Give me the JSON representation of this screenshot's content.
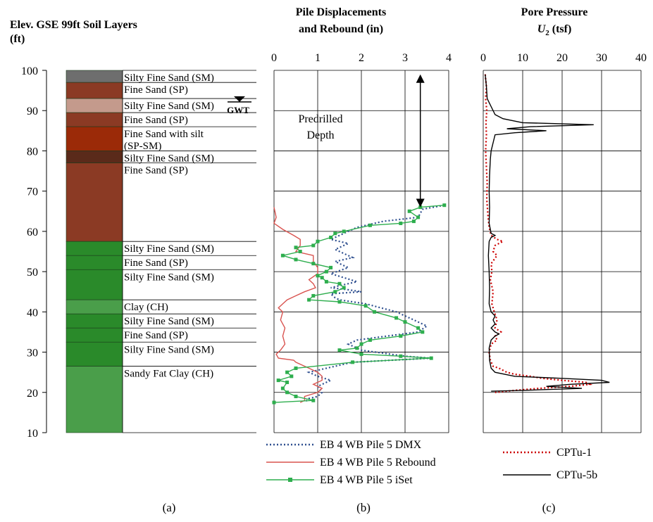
{
  "chart_data": [
    {
      "type": "soil-profile",
      "title": "Elev. GSE 99ft  Soil Layers",
      "ylabel": "(ft)",
      "ylim": [
        10,
        100
      ],
      "yticks": [
        10,
        20,
        30,
        40,
        50,
        60,
        70,
        80,
        90,
        100
      ],
      "panel_label": "(a)",
      "gwt_label": "GWT",
      "gwt_elevation": 96,
      "layers": [
        {
          "top": 100,
          "bottom": 97,
          "label": "Silty Fine Sand (SM)",
          "color": "#6e6e6e"
        },
        {
          "top": 97,
          "bottom": 93,
          "label": "Fine Sand (SP)",
          "color": "#8b3a24"
        },
        {
          "top": 93,
          "bottom": 89.5,
          "label": "Silty Fine Sand (SM)",
          "color": "#c49a8c"
        },
        {
          "top": 89.5,
          "bottom": 86,
          "label": "Fine Sand (SP)",
          "color": "#8b3a24"
        },
        {
          "top": 86,
          "bottom": 80,
          "label": "Fine Sand with silt",
          "label2": "(SP-SM)",
          "color": "#9b2a08"
        },
        {
          "top": 80,
          "bottom": 77,
          "label": "Silty Fine Sand (SM)",
          "color": "#5a2a1a"
        },
        {
          "top": 77,
          "bottom": 57.5,
          "label": "Fine Sand (SP)",
          "color": "#8b3a24"
        },
        {
          "top": 57.5,
          "bottom": 54,
          "label": "Silty Fine Sand (SM)",
          "color": "#2a8a2a"
        },
        {
          "top": 54,
          "bottom": 50.5,
          "label": "Fine Sand (SP)",
          "color": "#2a8a2a"
        },
        {
          "top": 50.5,
          "bottom": 43,
          "label": "Silty Fine Sand (SM)",
          "color": "#2a8a2a"
        },
        {
          "top": 43,
          "bottom": 39.5,
          "label": "Clay (CH)",
          "color": "#4a9e4a"
        },
        {
          "top": 39.5,
          "bottom": 36,
          "label": "Silty Fine Sand (SM)",
          "color": "#2a8a2a"
        },
        {
          "top": 36,
          "bottom": 32.5,
          "label": "Fine Sand (SP)",
          "color": "#2a8a2a"
        },
        {
          "top": 32.5,
          "bottom": 26.5,
          "label": "Silty Fine Sand (SM)",
          "color": "#2a8a2a"
        },
        {
          "top": 26.5,
          "bottom": 10,
          "label": "Sandy Fat Clay (CH)",
          "color": "#4a9e4a"
        }
      ]
    },
    {
      "type": "line",
      "title": "Pile Displacements",
      "title2": "and Rebound (in)",
      "panel_label": "(b)",
      "xlim": [
        0,
        4
      ],
      "xticks": [
        0,
        1,
        2,
        3,
        4
      ],
      "ylim": [
        10,
        100
      ],
      "annotation": "Predrilled",
      "annotation2": "Depth",
      "arrow_from": 99,
      "arrow_to": 66,
      "arrow_x": 3.35,
      "series": [
        {
          "name": "EB 4 WB Pile 5 DMX",
          "color": "#2e4f8f",
          "style": "dotted",
          "points": [
            [
              3.9,
              66.5
            ],
            [
              3.4,
              65.5
            ],
            [
              3.3,
              63.5
            ],
            [
              2.5,
              62.5
            ],
            [
              1.9,
              61
            ],
            [
              1.5,
              59
            ],
            [
              1.3,
              58
            ],
            [
              1.7,
              57
            ],
            [
              1.4,
              55.5
            ],
            [
              1.8,
              53.5
            ],
            [
              1.4,
              52.5
            ],
            [
              1.7,
              51
            ],
            [
              1.3,
              49.5
            ],
            [
              1.6,
              48.5
            ],
            [
              1.9,
              47.5
            ],
            [
              1.3,
              46
            ],
            [
              1.7,
              45.5
            ],
            [
              2.0,
              45
            ],
            [
              1.3,
              44.5
            ],
            [
              1.4,
              43.5
            ],
            [
              1.5,
              43
            ],
            [
              2.1,
              42
            ],
            [
              2.8,
              40
            ],
            [
              3.5,
              36.5
            ],
            [
              3.3,
              35
            ],
            [
              1.9,
              33
            ],
            [
              1.7,
              32
            ],
            [
              2.0,
              30.5
            ],
            [
              3.0,
              29
            ],
            [
              3.6,
              28.5
            ],
            [
              1.8,
              27.5
            ],
            [
              1.2,
              26
            ],
            [
              0.8,
              25
            ],
            [
              1.0,
              24
            ],
            [
              1.3,
              23
            ],
            [
              1.0,
              21.5
            ],
            [
              1.1,
              20
            ],
            [
              1.0,
              19
            ],
            [
              0.8,
              18.5
            ],
            [
              0.7,
              17.5
            ]
          ]
        },
        {
          "name": "EB 4 WB Pile 5 Rebound",
          "color": "#d9534f",
          "style": "solid",
          "points": [
            [
              0,
              66
            ],
            [
              0.05,
              63.5
            ],
            [
              0.0,
              62
            ],
            [
              0.2,
              60.5
            ],
            [
              0.45,
              59
            ],
            [
              0.6,
              58
            ],
            [
              0.6,
              56.5
            ],
            [
              0.5,
              55
            ],
            [
              0.9,
              54
            ],
            [
              0.9,
              52.5
            ],
            [
              1.0,
              51
            ],
            [
              1.0,
              49.5
            ],
            [
              0.8,
              48
            ],
            [
              0.9,
              47
            ],
            [
              0.95,
              46
            ],
            [
              0.7,
              45
            ],
            [
              0.5,
              44
            ],
            [
              0.3,
              43
            ],
            [
              0.2,
              42
            ],
            [
              0.1,
              41
            ],
            [
              0.2,
              40
            ],
            [
              0.15,
              38
            ],
            [
              0.25,
              36
            ],
            [
              0.2,
              34
            ],
            [
              0.25,
              32
            ],
            [
              0.15,
              30.5
            ],
            [
              0.05,
              29.5
            ],
            [
              0.1,
              28.5
            ],
            [
              0.45,
              28
            ],
            [
              0.5,
              27.5
            ],
            [
              0.8,
              26
            ],
            [
              1.0,
              25
            ],
            [
              1.1,
              24
            ],
            [
              1.1,
              23
            ],
            [
              0.9,
              22
            ],
            [
              1.1,
              21
            ],
            [
              1.0,
              20
            ],
            [
              0.7,
              19
            ],
            [
              0.7,
              18
            ],
            [
              0.6,
              17.5
            ]
          ]
        },
        {
          "name": "EB 4 WB Pile 5 iSet",
          "color": "#2eae4e",
          "style": "solid-markers",
          "points": [
            [
              3.9,
              66.5
            ],
            [
              3.35,
              66
            ],
            [
              3.1,
              65
            ],
            [
              3.3,
              63.5
            ],
            [
              3.2,
              62.5
            ],
            [
              2.9,
              62
            ],
            [
              2.2,
              61.5
            ],
            [
              1.6,
              60
            ],
            [
              1.4,
              59.5
            ],
            [
              1.3,
              58.5
            ],
            [
              1.0,
              57.5
            ],
            [
              0.9,
              56.5
            ],
            [
              0.5,
              56
            ],
            [
              0.6,
              55
            ],
            [
              0.2,
              54
            ],
            [
              0.5,
              53
            ],
            [
              0.9,
              52
            ],
            [
              1.3,
              51
            ],
            [
              1.2,
              50
            ],
            [
              1.0,
              49
            ],
            [
              1.1,
              48.5
            ],
            [
              1.2,
              47.5
            ],
            [
              1.5,
              47
            ],
            [
              1.6,
              46
            ],
            [
              1.4,
              45
            ],
            [
              0.9,
              44
            ],
            [
              0.8,
              43
            ],
            [
              1.5,
              42.5
            ],
            [
              2.1,
              41.5
            ],
            [
              2.3,
              40
            ],
            [
              2.8,
              38.5
            ],
            [
              3.0,
              37.5
            ],
            [
              3.3,
              36
            ],
            [
              3.4,
              35
            ],
            [
              2.9,
              34
            ],
            [
              2.2,
              33
            ],
            [
              2.0,
              32
            ],
            [
              1.9,
              31
            ],
            [
              1.5,
              30.5
            ],
            [
              2.0,
              29.5
            ],
            [
              2.9,
              29
            ],
            [
              3.6,
              28.5
            ],
            [
              1.8,
              27.5
            ],
            [
              0.5,
              26
            ],
            [
              0.3,
              25
            ],
            [
              0.4,
              24
            ],
            [
              0.1,
              23
            ],
            [
              0.3,
              22.5
            ],
            [
              0.2,
              21
            ],
            [
              0.3,
              20
            ],
            [
              0.5,
              19
            ],
            [
              0.9,
              18
            ],
            [
              0.0,
              17.5
            ]
          ]
        }
      ]
    },
    {
      "type": "line",
      "title": "Pore Pressure",
      "title2": "U",
      "title2_sub": "2",
      "title2_unit": " (tsf)",
      "panel_label": "(c)",
      "xlim": [
        0,
        40
      ],
      "xticks": [
        0,
        10,
        20,
        30,
        40
      ],
      "ylim": [
        10,
        100
      ],
      "series": [
        {
          "name": "CPTu-1",
          "color": "#cc0000",
          "style": "dotted",
          "points": [
            [
              0.5,
              99
            ],
            [
              0.8,
              96
            ],
            [
              0.6,
              93
            ],
            [
              0.9,
              90
            ],
            [
              0.7,
              87
            ],
            [
              0.8,
              84
            ],
            [
              0.6,
              80
            ],
            [
              0.8,
              76
            ],
            [
              1.0,
              72
            ],
            [
              0.9,
              68
            ],
            [
              1.2,
              64
            ],
            [
              1.5,
              61
            ],
            [
              2.0,
              59
            ],
            [
              3.5,
              58
            ],
            [
              5.0,
              57.5
            ],
            [
              3.0,
              56.5
            ],
            [
              2.5,
              55
            ],
            [
              3.5,
              54
            ],
            [
              2.0,
              52
            ],
            [
              2.2,
              50
            ],
            [
              1.8,
              48
            ],
            [
              2.5,
              45
            ],
            [
              2.2,
              42
            ],
            [
              2.8,
              40
            ],
            [
              3.5,
              38
            ],
            [
              3.0,
              36
            ],
            [
              4.5,
              35
            ],
            [
              3.0,
              34
            ],
            [
              3.5,
              33
            ],
            [
              2.0,
              32
            ],
            [
              1.5,
              30
            ],
            [
              1.8,
              28
            ],
            [
              2.5,
              26.5
            ],
            [
              4.0,
              26
            ],
            [
              6.0,
              25
            ],
            [
              8.0,
              24.5
            ],
            [
              12.0,
              24
            ],
            [
              15.0,
              23.5
            ],
            [
              20.0,
              23
            ],
            [
              26.0,
              22.5
            ],
            [
              27.0,
              22
            ],
            [
              22.0,
              21.5
            ],
            [
              14.0,
              21
            ],
            [
              8.0,
              20.5
            ],
            [
              3.0,
              20
            ]
          ]
        },
        {
          "name": "CPTu-5b",
          "color": "#000000",
          "style": "solid",
          "points": [
            [
              0.5,
              99
            ],
            [
              0.8,
              96
            ],
            [
              1.0,
              93
            ],
            [
              2.0,
              91
            ],
            [
              3.0,
              89
            ],
            [
              5.0,
              88
            ],
            [
              10.0,
              87
            ],
            [
              28.0,
              86.5
            ],
            [
              12.0,
              86
            ],
            [
              6.0,
              85.5
            ],
            [
              16.0,
              85
            ],
            [
              8.0,
              84.5
            ],
            [
              3.0,
              84
            ],
            [
              2.5,
              82
            ],
            [
              2.0,
              80
            ],
            [
              1.8,
              78
            ],
            [
              1.6,
              74
            ],
            [
              1.5,
              70
            ],
            [
              1.6,
              66
            ],
            [
              1.5,
              62
            ],
            [
              2.0,
              59.5
            ],
            [
              3.0,
              59
            ],
            [
              2.0,
              58.5
            ],
            [
              1.5,
              57.5
            ],
            [
              1.3,
              54
            ],
            [
              1.5,
              50
            ],
            [
              1.6,
              46
            ],
            [
              1.5,
              42
            ],
            [
              2.0,
              40
            ],
            [
              3.0,
              39
            ],
            [
              2.5,
              38
            ],
            [
              3.0,
              37
            ],
            [
              2.0,
              36
            ],
            [
              3.0,
              35
            ],
            [
              4.0,
              34.5
            ],
            [
              3.0,
              34
            ],
            [
              2.0,
              33
            ],
            [
              1.5,
              31
            ],
            [
              1.6,
              28
            ],
            [
              2.0,
              26
            ],
            [
              3.0,
              25
            ],
            [
              8.0,
              24
            ],
            [
              20.0,
              23.5
            ],
            [
              30.0,
              23
            ],
            [
              32.0,
              22.5
            ],
            [
              22.0,
              22
            ],
            [
              16.0,
              21.5
            ],
            [
              25.0,
              21
            ],
            [
              10.0,
              20.5
            ],
            [
              2.0,
              20.3
            ]
          ]
        }
      ]
    }
  ]
}
